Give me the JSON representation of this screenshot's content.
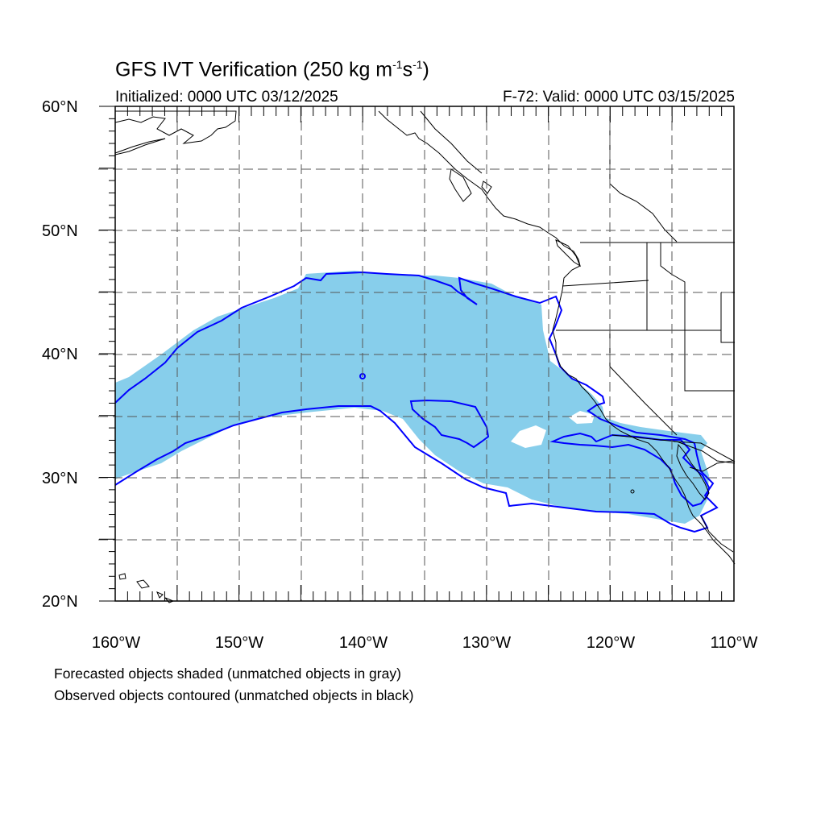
{
  "title": {
    "main": "GFS IVT Verification (250 kg m",
    "sup1": "-1",
    "mid": "s",
    "sup2": "-1",
    "end": ")"
  },
  "subtitle_left": "Initialized: 0000 UTC 03/12/2025",
  "subtitle_right": "F-72: Valid: 0000 UTC 03/15/2025",
  "lat_labels": [
    "60°N",
    "50°N",
    "40°N",
    "30°N",
    "20°N"
  ],
  "lon_labels": [
    "160°W",
    "150°W",
    "140°W",
    "130°W",
    "120°W",
    "110°W"
  ],
  "notes": [
    "Forecasted objects shaded (unmatched objects in gray)",
    "Observed objects contoured (unmatched objects in black)"
  ],
  "colors": {
    "forecast_fill": "#87ceeb",
    "observed_contour": "#0000ff",
    "coastline": "#000000",
    "grid": "#555555"
  },
  "map_extent": {
    "lon_min": -160,
    "lon_max": -110,
    "lat_min": 20,
    "lat_max": 60
  },
  "grid": {
    "dashed": true,
    "interval_deg": 5
  }
}
